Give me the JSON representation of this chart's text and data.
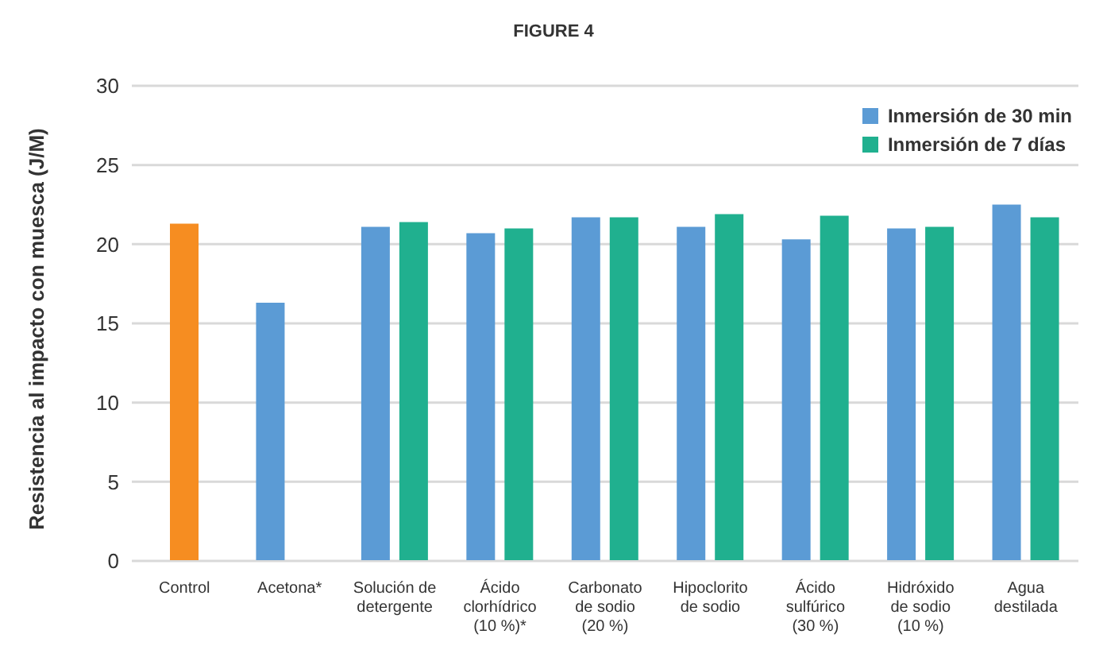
{
  "chart_data": {
    "type": "bar",
    "title": "FIGURE 4",
    "ylabel": "Resistencia al impacto con muesca (J/M)",
    "categories": [
      "Control",
      "Acetona*",
      "Solución de\ndetergente",
      "Ácido\nclorhídrico\n(10 %)*",
      "Carbonato\nde sodio\n(20 %)",
      "Hipoclorito\nde sodio",
      "Ácido\nsulfúrico\n(30 %)",
      "Hidróxido\nde sodio\n(10 %)",
      "Agua\ndestilada"
    ],
    "series": [
      {
        "color": "#f68d21",
        "values": [
          21.3,
          null,
          null,
          null,
          null,
          null,
          null,
          null,
          null
        ]
      },
      {
        "name": "Inmersión de 30 min",
        "color": "#5b9bd5",
        "values": [
          null,
          16.3,
          21.1,
          20.7,
          21.7,
          21.1,
          20.3,
          21.0,
          22.5
        ]
      },
      {
        "name": "Inmersión de 7 días",
        "color": "#20b08f",
        "values": [
          null,
          null,
          21.4,
          21.0,
          21.7,
          21.9,
          21.8,
          21.1,
          21.7
        ]
      }
    ],
    "ylim": [
      0,
      30
    ],
    "yticks": [
      0,
      5,
      10,
      15,
      20,
      25,
      30
    ],
    "grid": "y",
    "legend": "top right"
  }
}
